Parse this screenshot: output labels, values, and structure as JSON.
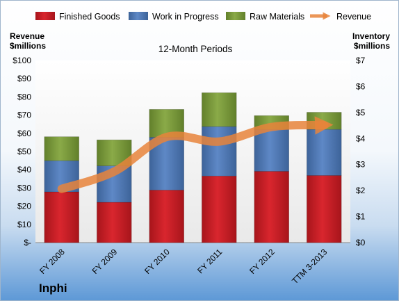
{
  "chart_data": {
    "type": "bar",
    "stacked": true,
    "title": "12-Month Periods",
    "company": "Inphi",
    "categories": [
      "FY 2008",
      "FY 2009",
      "FY 2010",
      "FY 2011",
      "FY 2012",
      "TTM 3-2013"
    ],
    "y_left": {
      "label_line1": "Revenue",
      "label_line2": "$millions",
      "range": [
        0,
        100
      ],
      "ticks": [
        "$-",
        "$10",
        "$20",
        "$30",
        "$40",
        "$50",
        "$60",
        "$70",
        "$80",
        "$90",
        "$100"
      ]
    },
    "y_right": {
      "label_line1": "Inventory",
      "label_line2": "$millions",
      "range": [
        0,
        7
      ],
      "ticks": [
        "$0",
        "$1",
        "$2",
        "$3",
        "$4",
        "$5",
        "$6",
        "$7"
      ]
    },
    "series": [
      {
        "name": "Finished Goods",
        "axis": "right",
        "color": "#cc2027",
        "values": [
          1.95,
          1.55,
          2.02,
          2.56,
          2.74,
          2.58
        ]
      },
      {
        "name": "Work in Progress",
        "axis": "right",
        "color": "#4f79b8",
        "values": [
          1.2,
          1.4,
          2.03,
          1.9,
          1.61,
          1.77
        ]
      },
      {
        "name": "Raw Materials",
        "axis": "right",
        "color": "#7b9a3b",
        "values": [
          0.92,
          1.0,
          1.07,
          1.3,
          0.53,
          0.66
        ]
      },
      {
        "name": "Revenue",
        "axis": "left",
        "type": "line",
        "color": "#e8843b",
        "values": [
          29.5,
          39,
          58,
          55.5,
          63.5,
          64.5
        ]
      }
    ],
    "grid": false,
    "legend": "top"
  }
}
